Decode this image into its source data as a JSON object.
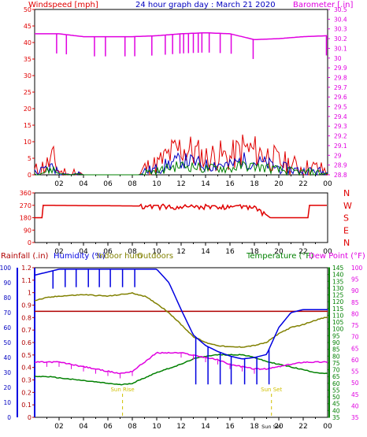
{
  "header": {
    "windspeed_label": "Windspeed [mph]",
    "title": "24 hour graph day : March 21 2020",
    "barometer_label": "Barometer [.in]"
  },
  "bottom_header": {
    "rainfall_label": "Rainfall (.in)",
    "humidity_label": "Humidity (%)",
    "indoor_label": "Indoor hum",
    "outdoor_label": "Outdoors",
    "temperature_label": "Temperature (°F)",
    "dewpoint_label": "Dew Point (°F)"
  },
  "colors": {
    "wind": "#e00000",
    "gust_blue": "#0000c0",
    "gust_green": "#008000",
    "barometer": "#e000e0",
    "direction": "#e00000",
    "rain": "#b00000",
    "humidity": "#0000e0",
    "indoor": "#808000",
    "temperature": "#008000",
    "dewpoint": "#e000e0",
    "sunmark": "#d0c000"
  },
  "chart_data": [
    {
      "type": "line",
      "title": "24 hour graph day : March 21 2020",
      "ylabel": "Windspeed [mph]",
      "ylabel_right": "Barometer [.in]",
      "ylim": [
        0,
        50
      ],
      "y_ticks": [
        "0",
        "5",
        "10",
        "15",
        "20",
        "25",
        "30",
        "35",
        "40",
        "45",
        "50"
      ],
      "ylim_right": [
        28.8,
        30.5
      ],
      "y_ticks_right": [
        "28.8",
        "28.9",
        "29",
        "29.1",
        "29.2",
        "29.3",
        "29.4",
        "29.5",
        "29.6",
        "29.7",
        "29.8",
        "29.9",
        "30",
        "30.1",
        "30.2",
        "30.3",
        "30.4",
        "30.5"
      ],
      "x_ticks": [
        "02",
        "04",
        "06",
        "08",
        "10",
        "12",
        "14",
        "16",
        "18",
        "20",
        "22",
        "00"
      ],
      "series": [
        {
          "name": "Windspeed",
          "x": [
            0,
            1,
            1.5,
            2,
            3,
            3.5,
            4,
            5,
            6,
            7,
            8,
            8.6,
            9,
            10,
            11,
            12,
            13,
            14,
            15,
            16,
            17,
            18,
            19,
            20,
            21,
            22,
            23,
            24
          ],
          "values": [
            1,
            3,
            5,
            1,
            0,
            1,
            0,
            0,
            0,
            0,
            0,
            0,
            2,
            3,
            6,
            8,
            7,
            5,
            6,
            5,
            8,
            7,
            6,
            4,
            3,
            2,
            2,
            1
          ]
        },
        {
          "name": "Barometer",
          "x": [
            0,
            2,
            4,
            6,
            8,
            10,
            12,
            14,
            16,
            18,
            20,
            22,
            24
          ],
          "values": [
            30.25,
            30.25,
            30.22,
            30.22,
            30.22,
            30.23,
            30.25,
            30.26,
            30.25,
            30.19,
            30.2,
            30.22,
            30.23
          ]
        }
      ]
    },
    {
      "type": "line",
      "ylim": [
        0,
        360
      ],
      "y_ticks": [
        "0",
        "90",
        "180",
        "270",
        "360"
      ],
      "compass_labels": [
        "N",
        "W",
        "S",
        "E",
        "N"
      ],
      "x_ticks": [
        "02",
        "04",
        "06",
        "08",
        "10",
        "12",
        "14",
        "16",
        "18",
        "20",
        "22",
        "00"
      ],
      "series": [
        {
          "name": "Wind direction",
          "x": [
            0,
            0.7,
            8.7,
            10,
            12,
            14,
            16,
            18,
            19.3,
            22.5,
            24
          ],
          "values": [
            180,
            270,
            265,
            270,
            260,
            265,
            270,
            265,
            180,
            270,
            270
          ]
        }
      ]
    },
    {
      "type": "line",
      "ylabel": "Rainfall (.in)",
      "ylim": [
        0,
        1.2
      ],
      "y_ticks": [
        "0",
        "0.1",
        "0.2",
        "0.3",
        "0.4",
        "0.5",
        "0.6",
        "0.7",
        "0.8",
        "0.9",
        "1",
        "1.1",
        "1.2"
      ],
      "ylim_humidity": [
        0,
        100
      ],
      "y_ticks_humidity": [
        "0",
        "10",
        "20",
        "30",
        "40",
        "50",
        "60",
        "70",
        "80",
        "90",
        "100"
      ],
      "ylim_temperature": [
        35,
        145
      ],
      "y_ticks_temperature": [
        "35",
        "40",
        "45",
        "50",
        "55",
        "60",
        "65",
        "70",
        "75",
        "80",
        "85",
        "90",
        "95",
        "100",
        "105",
        "110",
        "115",
        "120",
        "125",
        "130",
        "135",
        "140",
        "145"
      ],
      "ylim_dewpoint": [
        35,
        100
      ],
      "y_ticks_dewpoint": [
        "35",
        "40",
        "45",
        "50",
        "55",
        "60",
        "65",
        "70",
        "75",
        "80",
        "85",
        "90",
        "95",
        "100"
      ],
      "x_ticks": [
        "02",
        "04",
        "06",
        "08",
        "10",
        "12",
        "14",
        "16",
        "18",
        "Sun Set",
        "20",
        "22",
        "00"
      ],
      "annotations": [
        "Sun Rise",
        "Sun Set"
      ],
      "sunrise_hour": 7.2,
      "sunset_hour": 19.4,
      "series": [
        {
          "name": "Rainfall",
          "x": [
            0,
            24
          ],
          "values": [
            0.85,
            0.85
          ]
        },
        {
          "name": "Humidity",
          "x": [
            0,
            1,
            2,
            4,
            6,
            8,
            10,
            11,
            12,
            13,
            14,
            15,
            16,
            17,
            18,
            19,
            20,
            21,
            22,
            23,
            24
          ],
          "values": [
            95,
            97,
            99,
            99,
            99,
            99,
            99,
            90,
            72,
            55,
            48,
            44,
            41,
            39,
            40,
            42,
            60,
            70,
            72,
            72,
            72
          ]
        },
        {
          "name": "Indoor hum",
          "x": [
            0,
            1,
            2,
            4,
            6,
            8,
            9,
            10,
            11,
            12,
            13,
            14,
            15,
            16,
            17,
            18,
            19,
            20,
            21,
            22,
            23,
            24
          ],
          "values": [
            78,
            80,
            81,
            82,
            81,
            83,
            81,
            76,
            70,
            62,
            54,
            50,
            48,
            47,
            47,
            48,
            50,
            56,
            60,
            62,
            65,
            67
          ]
        },
        {
          "name": "Temperature",
          "x": [
            0,
            1,
            2,
            3,
            4,
            5,
            6,
            7,
            8,
            9,
            10,
            11,
            12,
            13,
            14,
            15,
            16,
            17,
            18,
            19,
            20,
            21,
            22,
            23,
            24
          ],
          "values": [
            65,
            65,
            64,
            63,
            62,
            61,
            60,
            59,
            60,
            64,
            68,
            71,
            74,
            78,
            80,
            81,
            81,
            81,
            79,
            76,
            74,
            72,
            70,
            68,
            67
          ]
        },
        {
          "name": "Dew Point",
          "x": [
            0,
            1,
            2,
            3,
            4,
            5,
            6,
            7,
            8,
            9,
            10,
            11,
            12,
            13,
            14,
            15,
            16,
            17,
            18,
            19,
            20,
            21,
            22,
            23,
            24
          ],
          "values": [
            59,
            59,
            59,
            58,
            57,
            56,
            55,
            54,
            55,
            59,
            63,
            63,
            63,
            62,
            61,
            60,
            58,
            57,
            56,
            56,
            57,
            58,
            59,
            59,
            59
          ]
        }
      ]
    }
  ]
}
